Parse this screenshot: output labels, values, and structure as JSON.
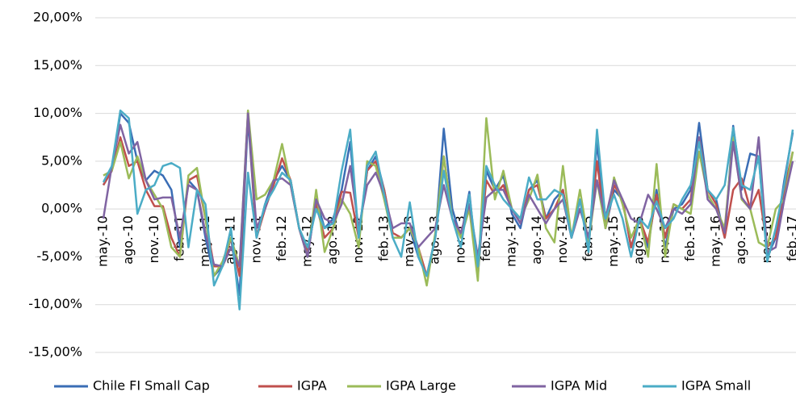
{
  "chart_data": {
    "type": "line",
    "categories": [
      "may.-10",
      null,
      null,
      "ago.-10",
      null,
      null,
      "nov.-10",
      null,
      null,
      "feb.-11",
      null,
      null,
      "may.-11",
      null,
      null,
      "ago.-11",
      null,
      null,
      "nov.-11",
      null,
      null,
      "feb.-12",
      null,
      null,
      "may.-12",
      null,
      null,
      "ago.-12",
      null,
      null,
      "nov.-12",
      null,
      null,
      "feb.-13",
      null,
      null,
      "may.-13",
      null,
      null,
      "ago.-13",
      null,
      null,
      "nov.-13",
      null,
      null,
      "feb.-14",
      null,
      null,
      "may.-14",
      null,
      null,
      "ago.-14",
      null,
      null,
      "nov.-14",
      null,
      null,
      "feb.-15",
      null,
      null,
      "may.-15",
      null,
      null,
      "ago.-15",
      null,
      null,
      "nov.-15",
      null,
      null,
      "feb.-16",
      null,
      null,
      "may.-16",
      null,
      null,
      "ago.-16",
      null,
      null,
      "nov.-16",
      null,
      null,
      "feb.-17"
    ],
    "series": [
      {
        "name": "Chile FI Small Cap",
        "color": "#3a6db5",
        "values": [
          2.5,
          4,
          10,
          9,
          5,
          3,
          4,
          3.5,
          2,
          -4,
          3,
          2,
          -3,
          -7,
          -6,
          -3,
          -9,
          9.5,
          -3,
          0.5,
          3,
          4.5,
          3,
          -2,
          -5,
          1,
          -2,
          -1,
          2,
          7,
          -3,
          4,
          5.5,
          2,
          -3,
          -3,
          -2,
          -5,
          -7,
          -3,
          8.4,
          0,
          -3,
          1.8,
          -7,
          4,
          2,
          3.5,
          -0.5,
          -2,
          2,
          3,
          -1,
          1,
          2,
          -3,
          1,
          -4,
          7,
          -2,
          2,
          1,
          -4,
          -1,
          -4,
          2,
          -4,
          0,
          0.5,
          2,
          9,
          2,
          1,
          -3,
          8.7,
          2,
          5.8,
          5.5,
          -5,
          -3,
          3,
          8
        ]
      },
      {
        "name": "IGPA",
        "color": "#c0504d",
        "values": [
          2.5,
          4,
          7.5,
          4.5,
          5,
          2,
          0.3,
          0.3,
          -3,
          -5,
          3,
          3.5,
          -1,
          -6,
          -6,
          -3,
          -7,
          10.2,
          -3,
          0,
          2.5,
          5.3,
          3,
          -2,
          -4.5,
          0.5,
          -3,
          -2,
          1.8,
          1.7,
          -3,
          4,
          5,
          2,
          -2.5,
          -3,
          -2,
          -4,
          -7,
          -3,
          5.5,
          -1,
          -2.5,
          0.5,
          -6,
          3,
          1.5,
          2.5,
          0,
          -1.5,
          2,
          2.5,
          -1,
          0,
          2,
          -3,
          1,
          -4,
          5,
          -2,
          2.5,
          1,
          -4,
          -1,
          -3.5,
          1.5,
          -3,
          0.5,
          0,
          1,
          7.5,
          2,
          0.5,
          -3,
          2,
          3.2,
          0,
          2,
          -4,
          -3,
          2,
          6
        ]
      },
      {
        "name": "IGPA Large",
        "color": "#9bbb59",
        "values": [
          3.5,
          4,
          7,
          3.2,
          5.5,
          3,
          1.5,
          0,
          -4,
          -5,
          3.5,
          4.3,
          -1,
          -7,
          -5.5,
          -3,
          -6,
          10.3,
          1,
          1.5,
          3,
          6.8,
          2.5,
          -2,
          -5,
          2,
          -4.5,
          -2,
          1,
          -0.5,
          -4,
          5,
          4.5,
          1,
          -3,
          -3,
          -2,
          -4,
          -8,
          -2.5,
          5.5,
          -1,
          -3,
          0,
          -7.5,
          9.5,
          1,
          4,
          0,
          -1,
          1,
          3.6,
          -2,
          -3.5,
          4.5,
          -3,
          2,
          -3.5,
          3,
          -2,
          3.3,
          0.5,
          -3,
          -1,
          -5,
          4.7,
          -5,
          0.5,
          0,
          -0.5,
          6,
          1.5,
          0,
          -2,
          7.5,
          1,
          0,
          -3.5,
          -4,
          0,
          1,
          6
        ]
      },
      {
        "name": "IGPA Mid",
        "color": "#8064a2",
        "values": [
          -1,
          4.5,
          8.8,
          5.8,
          7,
          3,
          1,
          1.2,
          1.2,
          -3,
          2.5,
          2,
          -2.5,
          -5.8,
          -6,
          -4,
          -6,
          10,
          -2,
          0,
          3,
          3.2,
          2.5,
          -2,
          -5,
          1,
          -1,
          -1.5,
          0.5,
          4.5,
          -2,
          2.5,
          3.8,
          1.5,
          -2,
          -1.5,
          -1.5,
          -4,
          -3,
          -2,
          2.5,
          -1,
          -2.5,
          0.5,
          -5,
          1.2,
          2,
          2,
          0,
          -1.5,
          1.5,
          0,
          -1.5,
          0,
          1,
          -3,
          0,
          -3,
          3,
          -1,
          3,
          1,
          -1,
          -1.5,
          1.5,
          0,
          -2,
          0,
          -0.5,
          0.5,
          7.5,
          1,
          0,
          -2.5,
          7,
          1.2,
          0,
          7.5,
          -4.5,
          -4,
          1,
          5
        ]
      },
      {
        "name": "IGPA Small",
        "color": "#4bacc6",
        "values": [
          2.8,
          4.5,
          10.3,
          9.5,
          -0.5,
          2,
          2.5,
          4.5,
          4.8,
          4.3,
          -4,
          2,
          0.5,
          -8,
          -6,
          -2,
          -10.5,
          3.8,
          -3,
          0.5,
          2,
          3.8,
          3,
          -2,
          -4,
          0,
          -2,
          -1.5,
          4,
          8.3,
          -3,
          4.5,
          6,
          1.5,
          -3,
          -5,
          0.7,
          -5,
          -7,
          -3,
          4,
          -1,
          -4,
          1.5,
          -6,
          4.5,
          2.5,
          1,
          0,
          -1,
          3.3,
          1,
          1,
          2,
          1.5,
          -3,
          1,
          -4.5,
          8.3,
          -1,
          1.5,
          -1,
          -5,
          -1,
          -2,
          0.8,
          -2,
          -1,
          1,
          2.5,
          7,
          2,
          1,
          2.5,
          8.5,
          2.5,
          2,
          5.5,
          -5.5,
          -2,
          2.5,
          8.3
        ]
      }
    ],
    "ylim": [
      -15,
      20
    ],
    "yticks": [
      {
        "value": -15,
        "label": "-15,00%"
      },
      {
        "value": -10,
        "label": "-10,00%"
      },
      {
        "value": -5,
        "label": "-5,00%"
      },
      {
        "value": 0,
        "label": "0,00%"
      },
      {
        "value": 5,
        "label": "5,00%"
      },
      {
        "value": 10,
        "label": "10,00%"
      },
      {
        "value": 15,
        "label": "15,00%"
      },
      {
        "value": 20,
        "label": "20,00%"
      }
    ],
    "grid": true,
    "legend": "bottom"
  }
}
